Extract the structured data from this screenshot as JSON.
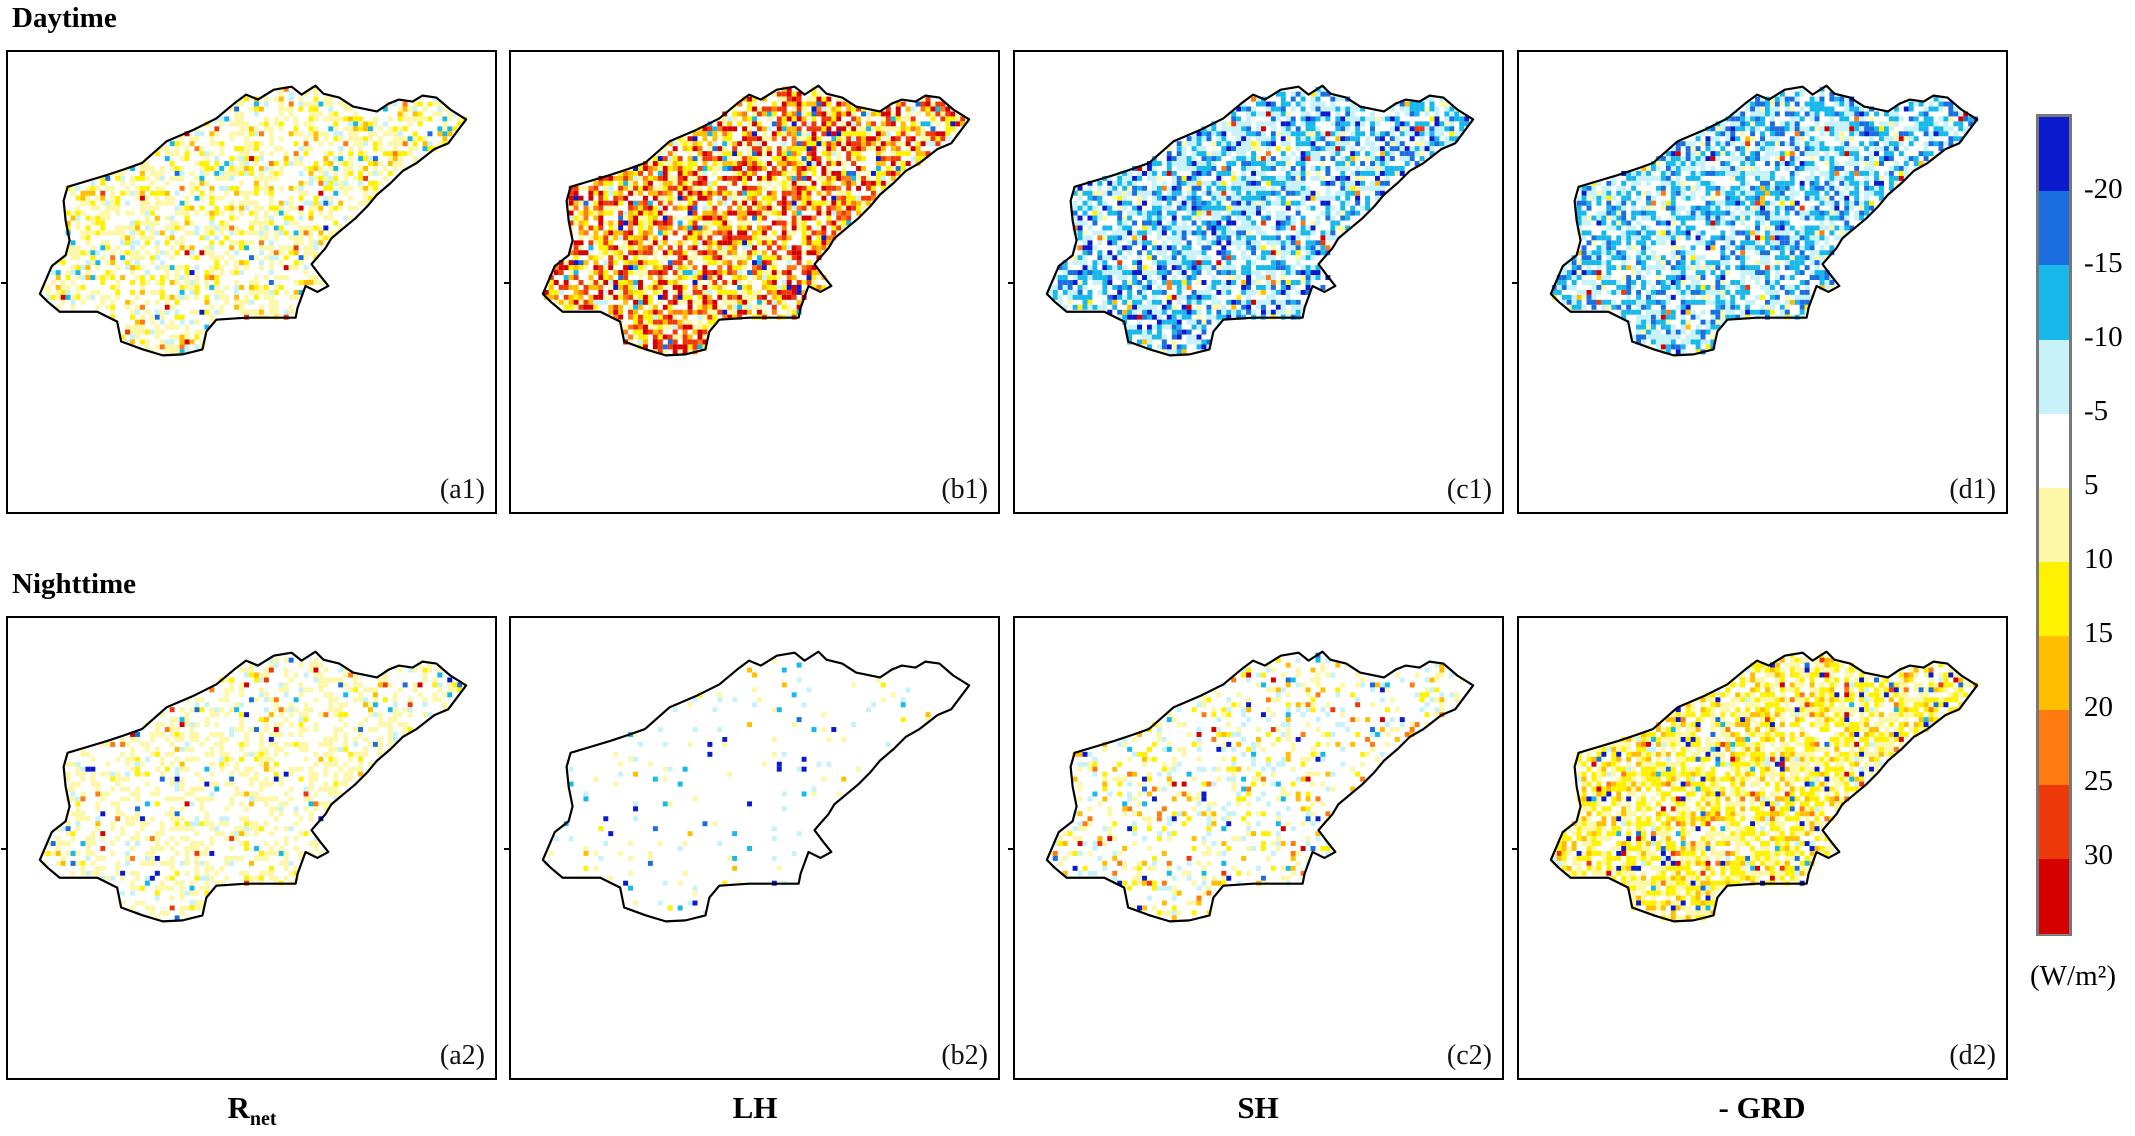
{
  "rows": [
    {
      "title": "Daytime",
      "panels": [
        {
          "id": "a1",
          "label": "(a1)",
          "pattern": "warm_mild"
        },
        {
          "id": "b1",
          "label": "(b1)",
          "pattern": "warm_strong"
        },
        {
          "id": "c1",
          "label": "(c1)",
          "pattern": "cool_mod"
        },
        {
          "id": "d1",
          "label": "(d1)",
          "pattern": "cool_mod2"
        }
      ]
    },
    {
      "title": "Nighttime",
      "panels": [
        {
          "id": "a2",
          "label": "(a2)",
          "pattern": "warm_faint"
        },
        {
          "id": "b2",
          "label": "(b2)",
          "pattern": "near_zero"
        },
        {
          "id": "c2",
          "label": "(c2)",
          "pattern": "mixed_faint"
        },
        {
          "id": "d2",
          "label": "(d2)",
          "pattern": "warm_mod"
        }
      ]
    }
  ],
  "columns": [
    {
      "main": "R",
      "sub": "net"
    },
    {
      "main": "LH",
      "sub": ""
    },
    {
      "main": "SH",
      "sub": ""
    },
    {
      "main": "- GRD",
      "sub": ""
    }
  ],
  "colorbar": {
    "colors": [
      "#0a1acc",
      "#1a6ee0",
      "#19b8ea",
      "#c8f2fa",
      "#ffffff",
      "#fdf7a8",
      "#fff200",
      "#ffbf00",
      "#ff7a10",
      "#ee3a0a",
      "#d50000"
    ],
    "tick_labels": [
      "-20",
      "-15",
      "-10",
      "-5",
      "5",
      "10",
      "15",
      "20",
      "25",
      "30"
    ],
    "unit": "(W/m²)"
  }
}
